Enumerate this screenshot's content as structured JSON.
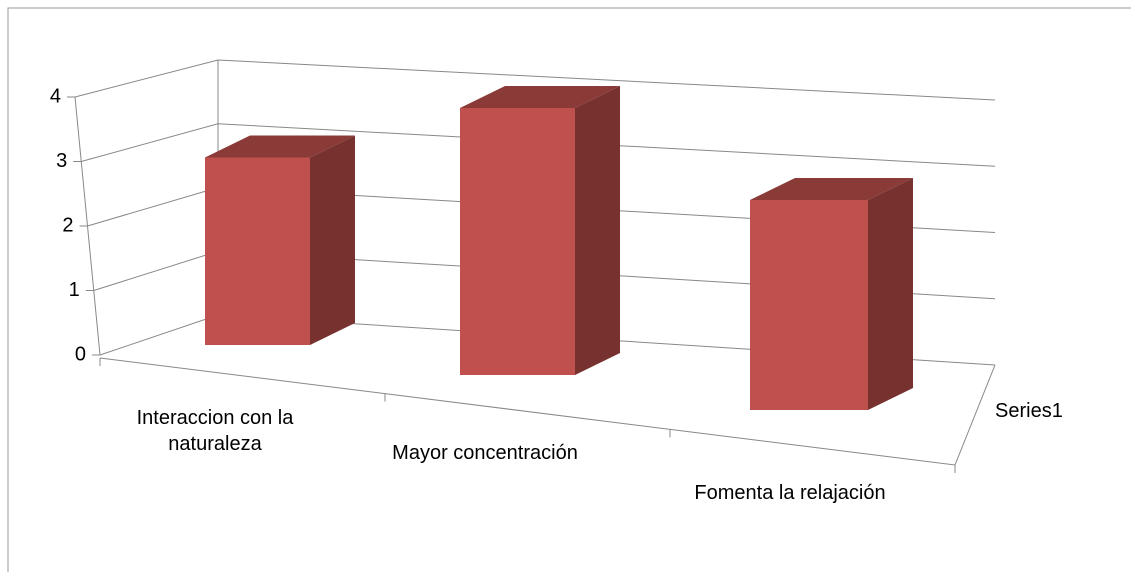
{
  "chart_data": {
    "type": "bar3d",
    "categories": [
      "Interaccion con la naturaleza",
      "Mayor concentración",
      "Fomenta la relajación"
    ],
    "series": [
      {
        "name": "Series1",
        "color": "#c0504d",
        "values": [
          3,
          4,
          3
        ]
      }
    ],
    "ylim": [
      0,
      4
    ],
    "yticks": [
      0,
      1,
      2,
      3,
      4
    ],
    "grid": true
  }
}
